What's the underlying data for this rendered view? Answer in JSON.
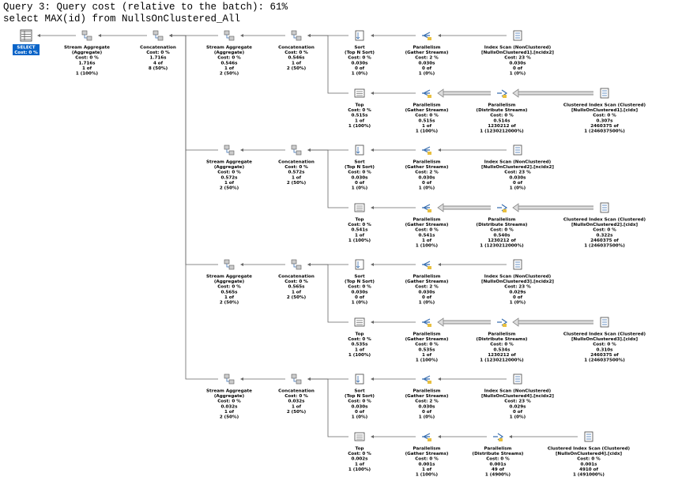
{
  "header": {
    "title": "Query 3: Query cost (relative to the batch): 61%",
    "query": "select MAX(id) from NullsOnClustered_All"
  },
  "nodes": [
    {
      "lines": [
        "SELECT",
        "Cost: 0 %"
      ]
    },
    {
      "lines": [
        "Stream Aggregate",
        "(Aggregate)",
        "Cost: 0 %",
        "1.716s",
        "1 of",
        "1 (100%)"
      ]
    },
    {
      "lines": [
        "Concatenation",
        "Cost: 0 %",
        "1.716s",
        "4 of",
        "8 (50%)"
      ]
    },
    {
      "lines": [
        "Stream Aggregate",
        "(Aggregate)",
        "Cost: 0 %",
        "0.546s",
        "1 of",
        "2 (50%)"
      ]
    },
    {
      "lines": [
        "Concatenation",
        "Cost: 0 %",
        "0.546s",
        "1 of",
        "2 (50%)"
      ]
    },
    {
      "lines": [
        "Sort",
        "(Top N Sort)",
        "Cost: 0 %",
        "0.030s",
        "0 of",
        "1 (0%)"
      ]
    },
    {
      "lines": [
        "Parallelism",
        "(Gather Streams)",
        "Cost: 2 %",
        "0.030s",
        "0 of",
        "1 (0%)"
      ]
    },
    {
      "lines": [
        "Index Scan (NonClustered)",
        "[NullsOnClustered1].[ncidx2]",
        "Cost: 23 %",
        "0.030s",
        "0 of",
        "1 (0%)"
      ]
    },
    {
      "lines": [
        "Top",
        "Cost: 0 %",
        "0.515s",
        "1 of",
        "1 (100%)"
      ]
    },
    {
      "lines": [
        "Parallelism",
        "(Gather Streams)",
        "Cost: 0 %",
        "0.515s",
        "1 of",
        "1 (100%)"
      ]
    },
    {
      "lines": [
        "Parallelism",
        "(Distribute Streams)",
        "Cost: 0 %",
        "0.514s",
        "1230212 of",
        "1 (1230212000%)"
      ]
    },
    {
      "lines": [
        "Clustered Index Scan (Clustered)",
        "[NullsOnClustered1].[cidx]",
        "Cost: 0 %",
        "0.307s",
        "2460375 of",
        "1 (246037500%)"
      ]
    },
    {
      "lines": [
        "Stream Aggregate",
        "(Aggregate)",
        "Cost: 0 %",
        "0.572s",
        "1 of",
        "2 (50%)"
      ]
    },
    {
      "lines": [
        "Concatenation",
        "Cost: 0 %",
        "0.572s",
        "1 of",
        "2 (50%)"
      ]
    },
    {
      "lines": [
        "Sort",
        "(Top N Sort)",
        "Cost: 0 %",
        "0.030s",
        "0 of",
        "1 (0%)"
      ]
    },
    {
      "lines": [
        "Parallelism",
        "(Gather Streams)",
        "Cost: 2 %",
        "0.030s",
        "0 of",
        "1 (0%)"
      ]
    },
    {
      "lines": [
        "Index Scan (NonClustered)",
        "[NullsOnClustered2].[ncidx2]",
        "Cost: 23 %",
        "0.030s",
        "0 of",
        "1 (0%)"
      ]
    },
    {
      "lines": [
        "Top",
        "Cost: 0 %",
        "0.541s",
        "1 of",
        "1 (100%)"
      ]
    },
    {
      "lines": [
        "Parallelism",
        "(Gather Streams)",
        "Cost: 0 %",
        "0.541s",
        "1 of",
        "1 (100%)"
      ]
    },
    {
      "lines": [
        "Parallelism",
        "(Distribute Streams)",
        "Cost: 0 %",
        "0.540s",
        "1230212 of",
        "1 (1230212000%)"
      ]
    },
    {
      "lines": [
        "Clustered Index Scan (Clustered)",
        "[NullsOnClustered2].[cidx]",
        "Cost: 0 %",
        "0.322s",
        "2460375 of",
        "1 (246037500%)"
      ]
    },
    {
      "lines": [
        "Stream Aggregate",
        "(Aggregate)",
        "Cost: 0 %",
        "0.565s",
        "1 of",
        "2 (50%)"
      ]
    },
    {
      "lines": [
        "Concatenation",
        "Cost: 0 %",
        "0.565s",
        "1 of",
        "2 (50%)"
      ]
    },
    {
      "lines": [
        "Sort",
        "(Top N Sort)",
        "Cost: 0 %",
        "0.030s",
        "0 of",
        "1 (0%)"
      ]
    },
    {
      "lines": [
        "Parallelism",
        "(Gather Streams)",
        "Cost: 2 %",
        "0.030s",
        "0 of",
        "1 (0%)"
      ]
    },
    {
      "lines": [
        "Index Scan (NonClustered)",
        "[NullsOnClustered3].[ncidx2]",
        "Cost: 23 %",
        "0.029s",
        "0 of",
        "1 (0%)"
      ]
    },
    {
      "lines": [
        "Top",
        "Cost: 0 %",
        "0.535s",
        "1 of",
        "1 (100%)"
      ]
    },
    {
      "lines": [
        "Parallelism",
        "(Gather Streams)",
        "Cost: 0 %",
        "0.535s",
        "1 of",
        "1 (100%)"
      ]
    },
    {
      "lines": [
        "Parallelism",
        "(Distribute Streams)",
        "Cost: 0 %",
        "0.534s",
        "1230212 of",
        "1 (1230212000%)"
      ]
    },
    {
      "lines": [
        "Clustered Index Scan (Clustered)",
        "[NullsOnClustered3].[cidx]",
        "Cost: 0 %",
        "0.310s",
        "2460375 of",
        "1 (246037500%)"
      ]
    },
    {
      "lines": [
        "Stream Aggregate",
        "(Aggregate)",
        "Cost: 0 %",
        "0.032s",
        "1 of",
        "2 (50%)"
      ]
    },
    {
      "lines": [
        "Concatenation",
        "Cost: 0 %",
        "0.032s",
        "1 of",
        "2 (50%)"
      ]
    },
    {
      "lines": [
        "Sort",
        "(Top N Sort)",
        "Cost: 0 %",
        "0.030s",
        "0 of",
        "1 (0%)"
      ]
    },
    {
      "lines": [
        "Parallelism",
        "(Gather Streams)",
        "Cost: 2 %",
        "0.030s",
        "0 of",
        "1 (0%)"
      ]
    },
    {
      "lines": [
        "Index Scan (NonClustered)",
        "[NullsOnClustered4].[ncidx2]",
        "Cost: 23 %",
        "0.029s",
        "0 of",
        "1 (0%)"
      ]
    },
    {
      "lines": [
        "Top",
        "Cost: 0 %",
        "0.002s",
        "1 of",
        "1 (100%)"
      ]
    },
    {
      "lines": [
        "Parallelism",
        "(Gather Streams)",
        "Cost: 0 %",
        "0.001s",
        "1 of",
        "1 (100%)"
      ]
    },
    {
      "lines": [
        "Parallelism",
        "(Distribute Streams)",
        "Cost: 0 %",
        "0.001s",
        "49 of",
        "1 (4900%)"
      ]
    },
    {
      "lines": [
        "Clustered Index Scan (Clustered)",
        "[NullsOnClustered4].[cidx]",
        "Cost: 0 %",
        "0.001s",
        "4910 of",
        "1 (491000%)"
      ]
    }
  ]
}
